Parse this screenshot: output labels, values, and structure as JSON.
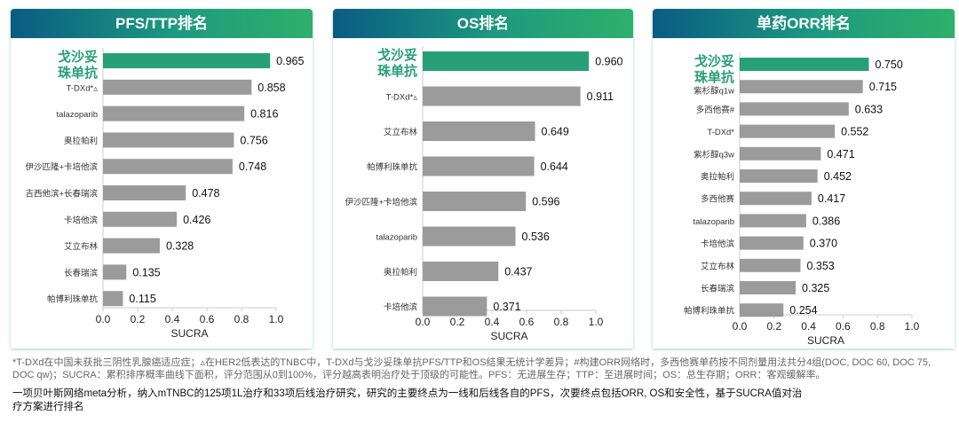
{
  "colors": {
    "highlight": "#27a077",
    "bar": "#9b9b9c",
    "label_highlight": "#27a077"
  },
  "chart_data": [
    {
      "type": "bar",
      "orientation": "horizontal",
      "title": "PFS/TTP排名",
      "xlabel": "SUCRA",
      "xlim": [
        0,
        1
      ],
      "xticks": [
        "0.0",
        "0.2",
        "0.4",
        "0.6",
        "0.8",
        "1.0"
      ],
      "categories": [
        "戈沙妥珠单抗",
        "T-DXd*▵",
        "talazoparib",
        "奥拉帕利",
        "伊沙匹隆+卡培他滨",
        "吉西他滨+长春瑞滨",
        "卡培他滨",
        "艾立布林",
        "长春瑞滨",
        "帕博利珠单抗"
      ],
      "values": [
        0.965,
        0.858,
        0.816,
        0.756,
        0.748,
        0.478,
        0.426,
        0.328,
        0.135,
        0.115
      ],
      "labels": [
        "0.965",
        "0.858",
        "0.816",
        "0.756",
        "0.748",
        "0.478",
        "0.426",
        "0.328",
        "0.135",
        "0.115"
      ]
    },
    {
      "type": "bar",
      "orientation": "horizontal",
      "title": "OS排名",
      "xlabel": "SUCRA",
      "xlim": [
        0,
        1
      ],
      "xticks": [
        "0.0",
        "0.2",
        "0.4",
        "0.6",
        "0.8",
        "1.0"
      ],
      "categories": [
        "戈沙妥珠单抗",
        "T-DXd*▵",
        "艾立布林",
        "帕博利珠单抗",
        "伊沙匹隆+卡培他滨",
        "talazoparib",
        "奥拉帕利",
        "卡培他滨"
      ],
      "values": [
        0.96,
        0.911,
        0.649,
        0.644,
        0.596,
        0.536,
        0.437,
        0.371
      ],
      "labels": [
        "0.960",
        "0.911",
        "0.649",
        "0.644",
        "0.596",
        "0.536",
        "0.437",
        "0.371"
      ]
    },
    {
      "type": "bar",
      "orientation": "horizontal",
      "title": "单药ORR排名",
      "xlabel": "SUCRA",
      "xlim": [
        0,
        1
      ],
      "xticks": [
        "0.0",
        "0.2",
        "0.4",
        "0.6",
        "0.8",
        "1.0"
      ],
      "categories": [
        "戈沙妥珠单抗",
        "紫杉醇q1w",
        "多西他赛#",
        "T-DXd*",
        "紫杉醇q3w",
        "奥拉帕利",
        "多西他赛",
        "talazoparib",
        "卡培他滨",
        "艾立布林",
        "长春瑞滨",
        "帕博利珠单抗"
      ],
      "values": [
        0.75,
        0.715,
        0.633,
        0.552,
        0.471,
        0.452,
        0.417,
        0.386,
        0.37,
        0.353,
        0.325,
        0.254
      ],
      "labels": [
        "0.750",
        "0.715",
        "0.633",
        "0.552",
        "0.471",
        "0.452",
        "0.417",
        "0.386",
        "0.370",
        "0.353",
        "0.325",
        "0.254"
      ]
    }
  ],
  "footnote": "*T-DXd在中国未获批三阴性乳腺癌适应症；▵在HER2低表达的TNBC中，T-DXd与戈沙妥珠单抗PFS/TTP和OS结果无统计学差异；#构建ORR网络时，多西他赛单药按不同剂量用法共分4组(DOC, DOC 60, DOC 75, DOC qw)；SUCRA：累积排序概率曲线下面积，评分范围从0到100%，评分越高表明治疗处于顶级的可能性。PFS：无进展生存；TTP：至进展时间；OS：总生存期；ORR：客观缓解率。",
  "summary": "一项贝叶斯网络meta分析，纳入mTNBC的125项1L治疗和33项后线治疗研究，研究的主要终点为一线和后线各自的PFS，次要终点包括ORR, OS和安全性，基于SUCRA值对治疗方案进行排名"
}
